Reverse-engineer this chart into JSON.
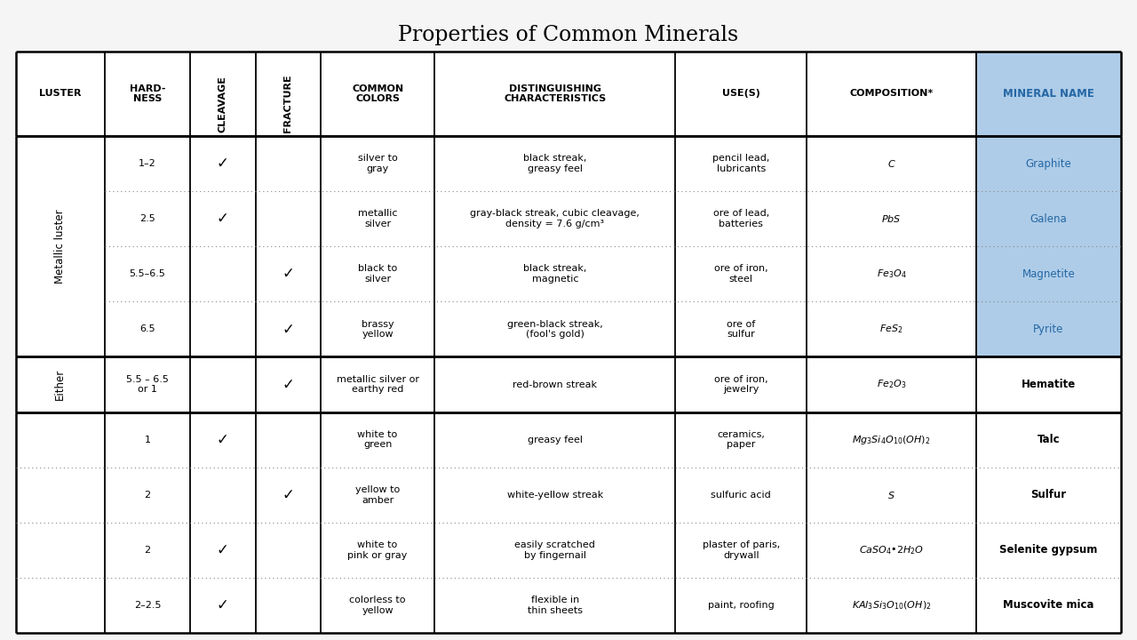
{
  "title": "Properties of Common Minerals",
  "title_fontsize": 17,
  "bg_color": "#f5f5f5",
  "header_bg_blue": "#aecce8",
  "header_text_color_blue": "#2567a4",
  "col_header_fontsize": 8.0,
  "data_fontsize": 8.0,
  "mineral_name_fontsize": 8.5,
  "luster_groups": [
    {
      "label": "Metallic luster",
      "rows": [
        0,
        1,
        2,
        3
      ]
    },
    {
      "label": "Either",
      "rows": [
        4
      ]
    },
    {
      "label": "",
      "rows": [
        5,
        6,
        7,
        8
      ]
    }
  ],
  "rows": [
    {
      "hardness": "1–2",
      "cleavage": true,
      "fracture": false,
      "colors": "silver to\ngray",
      "distinguish": "black streak,\ngreasy feel",
      "uses": "pencil lead,\nlubricants",
      "comp_display": "C",
      "mineral": "Graphite",
      "mineral_bold": false,
      "mineral_blue": true
    },
    {
      "hardness": "2.5",
      "cleavage": true,
      "fracture": false,
      "colors": "metallic\nsilver",
      "distinguish": "gray-black streak, cubic cleavage,\ndensity = 7.6 g/cm³",
      "uses": "ore of lead,\nbatteries",
      "comp_display": "PbS",
      "mineral": "Galena",
      "mineral_bold": false,
      "mineral_blue": true
    },
    {
      "hardness": "5.5–6.5",
      "cleavage": false,
      "fracture": true,
      "colors": "black to\nsilver",
      "distinguish": "black streak,\nmagnetic",
      "uses": "ore of iron,\nsteel",
      "comp_display": "Fe_3O_4",
      "mineral": "Magnetite",
      "mineral_bold": false,
      "mineral_blue": true
    },
    {
      "hardness": "6.5",
      "cleavage": false,
      "fracture": true,
      "colors": "brassy\nyellow",
      "distinguish": "green-black streak,\n(fool's gold)",
      "uses": "ore of\nsulfur",
      "comp_display": "FeS_2",
      "mineral": "Pyrite",
      "mineral_bold": false,
      "mineral_blue": true
    },
    {
      "hardness": "5.5 – 6.5\nor 1",
      "cleavage": false,
      "fracture": true,
      "colors": "metallic silver or\nearthy red",
      "distinguish": "red-brown streak",
      "uses": "ore of iron,\njewelry",
      "comp_display": "Fe_2O_3",
      "mineral": "Hematite",
      "mineral_bold": true,
      "mineral_blue": false
    },
    {
      "hardness": "1",
      "cleavage": true,
      "fracture": false,
      "colors": "white to\ngreen",
      "distinguish": "greasy feel",
      "uses": "ceramics,\npaper",
      "comp_display": "Mg_3Si_4O_{10}(OH)_2",
      "mineral": "Talc",
      "mineral_bold": true,
      "mineral_blue": false
    },
    {
      "hardness": "2",
      "cleavage": false,
      "fracture": true,
      "colors": "yellow to\namber",
      "distinguish": "white-yellow streak",
      "uses": "sulfuric acid",
      "comp_display": "S",
      "mineral": "Sulfur",
      "mineral_bold": true,
      "mineral_blue": false
    },
    {
      "hardness": "2",
      "cleavage": true,
      "fracture": false,
      "colors": "white to\npink or gray",
      "distinguish": "easily scratched\nby fingernail",
      "uses": "plaster of paris,\ndrywall",
      "comp_display": "CaSO_4\\u22122H_2O",
      "mineral": "Selenite gypsum",
      "mineral_bold": true,
      "mineral_blue": false
    },
    {
      "hardness": "2–2.5",
      "cleavage": true,
      "fracture": false,
      "colors": "colorless to\nyellow",
      "distinguish": "flexible in\nthin sheets",
      "uses": "paint, roofing",
      "comp_display": "KAl_3Si_3O_{10}(OH)_2",
      "mineral": "Muscovite mica",
      "mineral_bold": true,
      "mineral_blue": false
    }
  ]
}
